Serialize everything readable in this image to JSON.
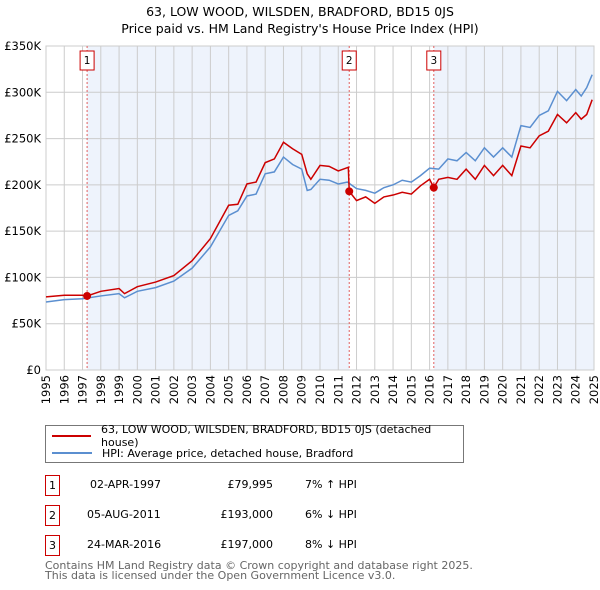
{
  "chart_data": {
    "type": "line",
    "title": "63, LOW WOOD, WILSDEN, BRADFORD, BD15 0JS",
    "subtitle": "Price paid vs. HM Land Registry's House Price Index (HPI)",
    "xlim": [
      1995,
      2025
    ],
    "ylim": [
      0,
      350000
    ],
    "y_ticks": [
      {
        "v": 0,
        "label": "£0"
      },
      {
        "v": 50000,
        "label": "£50K"
      },
      {
        "v": 100000,
        "label": "£100K"
      },
      {
        "v": 150000,
        "label": "£150K"
      },
      {
        "v": 200000,
        "label": "£200K"
      },
      {
        "v": 250000,
        "label": "£250K"
      },
      {
        "v": 300000,
        "label": "£300K"
      },
      {
        "v": 350000,
        "label": "£350K"
      }
    ],
    "x_ticks": [
      "1995",
      "1996",
      "1997",
      "1998",
      "1999",
      "2000",
      "2001",
      "2002",
      "2003",
      "2004",
      "2005",
      "2006",
      "2007",
      "2008",
      "2009",
      "2010",
      "2011",
      "2012",
      "2013",
      "2014",
      "2015",
      "2016",
      "2017",
      "2018",
      "2019",
      "2020",
      "2021",
      "2022",
      "2023",
      "2024",
      "2025"
    ],
    "grid": true,
    "series": [
      {
        "name": "63, LOW WOOD, WILSDEN, BRADFORD, BD15 0JS (detached house)",
        "color": "#cc0000",
        "x": [
          1995,
          1996,
          1997,
          1997.25,
          1998,
          1999,
          1999.3,
          2000,
          2001,
          2002,
          2003,
          2004,
          2005,
          2005.5,
          2006,
          2006.5,
          2007,
          2007.5,
          2008,
          2008.5,
          2009,
          2009.3,
          2009.5,
          2010,
          2010.5,
          2011,
          2011.55,
          2011.6,
          2012,
          2012.5,
          2013,
          2013.5,
          2014,
          2014.5,
          2015,
          2015.5,
          2016,
          2016.23,
          2016.5,
          2017,
          2017.5,
          2018,
          2018.5,
          2019,
          2019.5,
          2020,
          2020.5,
          2021,
          2021.5,
          2022,
          2022.5,
          2023,
          2023.5,
          2024,
          2024.3,
          2024.6,
          2024.9
        ],
        "y": [
          79000,
          80700,
          80700,
          79995,
          85000,
          88000,
          82500,
          90000,
          95000,
          102000,
          118000,
          142000,
          178000,
          179000,
          201000,
          203000,
          224000,
          228000,
          246000,
          239000,
          233000,
          212000,
          206000,
          221000,
          220000,
          215000,
          219000,
          193000,
          183000,
          187000,
          180000,
          187000,
          189000,
          192000,
          190000,
          199000,
          206000,
          197000,
          206000,
          208000,
          206000,
          217000,
          206000,
          221000,
          210000,
          221000,
          210000,
          242000,
          240000,
          253000,
          258000,
          276000,
          267000,
          278000,
          271000,
          276000,
          292000
        ]
      },
      {
        "name": "HPI: Average price, detached house, Bradford",
        "color": "#5b8fd0",
        "x": [
          1995,
          1996,
          1997,
          1998,
          1999,
          1999.3,
          2000,
          2001,
          2002,
          2003,
          2004,
          2005,
          2005.5,
          2006,
          2006.5,
          2007,
          2007.5,
          2008,
          2008.5,
          2009,
          2009.3,
          2009.5,
          2010,
          2010.5,
          2011,
          2011.5,
          2012,
          2012.5,
          2013,
          2013.5,
          2014,
          2014.5,
          2015,
          2015.5,
          2016,
          2016.5,
          2017,
          2017.5,
          2018,
          2018.5,
          2019,
          2019.5,
          2020,
          2020.5,
          2021,
          2021.5,
          2022,
          2022.5,
          2023,
          2023.5,
          2024,
          2024.3,
          2024.6,
          2024.9
        ],
        "y": [
          73500,
          76000,
          77000,
          80000,
          82500,
          78000,
          85000,
          89000,
          96000,
          110000,
          133000,
          167000,
          172000,
          188000,
          190000,
          212000,
          214000,
          230000,
          222000,
          217000,
          194000,
          195000,
          206000,
          205000,
          201000,
          203000,
          196000,
          194000,
          191000,
          197000,
          200000,
          205000,
          203000,
          210000,
          218000,
          217000,
          228000,
          226000,
          235000,
          226000,
          240000,
          230000,
          240000,
          230000,
          264000,
          262000,
          275000,
          280000,
          301000,
          291000,
          303000,
          296000,
          305000,
          319000
        ]
      }
    ],
    "sales": [
      {
        "n": "1",
        "x": 1997.25,
        "y": 79995,
        "date": "02-APR-1997",
        "price": "£79,995",
        "hpi": "7% ↑ HPI"
      },
      {
        "n": "2",
        "x": 2011.6,
        "y": 193000,
        "date": "05-AUG-2011",
        "price": "£193,000",
        "hpi": "6% ↓ HPI"
      },
      {
        "n": "3",
        "x": 2016.23,
        "y": 197000,
        "date": "24-MAR-2016",
        "price": "£197,000",
        "hpi": "8% ↓ HPI"
      }
    ],
    "shade_color": "#eef3fc",
    "legend_position": "bottom"
  },
  "footer": {
    "line1": "Contains HM Land Registry data © Crown copyright and database right 2025.",
    "line2": "This data is licensed under the Open Government Licence v3.0."
  }
}
